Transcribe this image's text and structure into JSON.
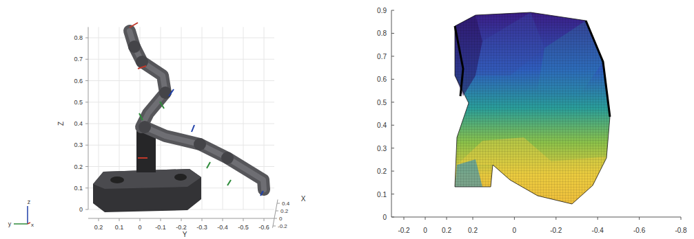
{
  "chart_data": [
    {
      "type": "3d_model",
      "xlabel": "X",
      "ylabel": "Y",
      "zlabel": "Z",
      "xlim": [
        0.5,
        -0.25
      ],
      "xticks": [
        0.4,
        0.2,
        0,
        -0.2
      ],
      "ylim": [
        0.25,
        -0.65
      ],
      "yticks": [
        0.2,
        0.1,
        0,
        -0.1,
        -0.2,
        -0.3,
        -0.4,
        -0.5,
        -0.6
      ],
      "zlim": [
        0,
        0.85
      ],
      "zticks": [
        0,
        0.1,
        0.2,
        0.3,
        0.4,
        0.5,
        0.6,
        0.7,
        0.8
      ],
      "grid": true,
      "annotations": [
        "z",
        "y",
        "x"
      ]
    },
    {
      "type": "3d_surface",
      "xlim": [
        -0.2,
        0.2
      ],
      "xticks": [
        -0.2,
        0,
        0.2
      ],
      "ylim": [
        0.2,
        -0.8
      ],
      "yticks": [
        0.2,
        0,
        -0.2,
        -0.4,
        -0.6,
        -0.8
      ],
      "zlim": [
        0,
        0.9
      ],
      "zticks": [
        0,
        0.1,
        0.2,
        0.3,
        0.4,
        0.5,
        0.6,
        0.7,
        0.8,
        0.9
      ],
      "grid": false
    }
  ]
}
